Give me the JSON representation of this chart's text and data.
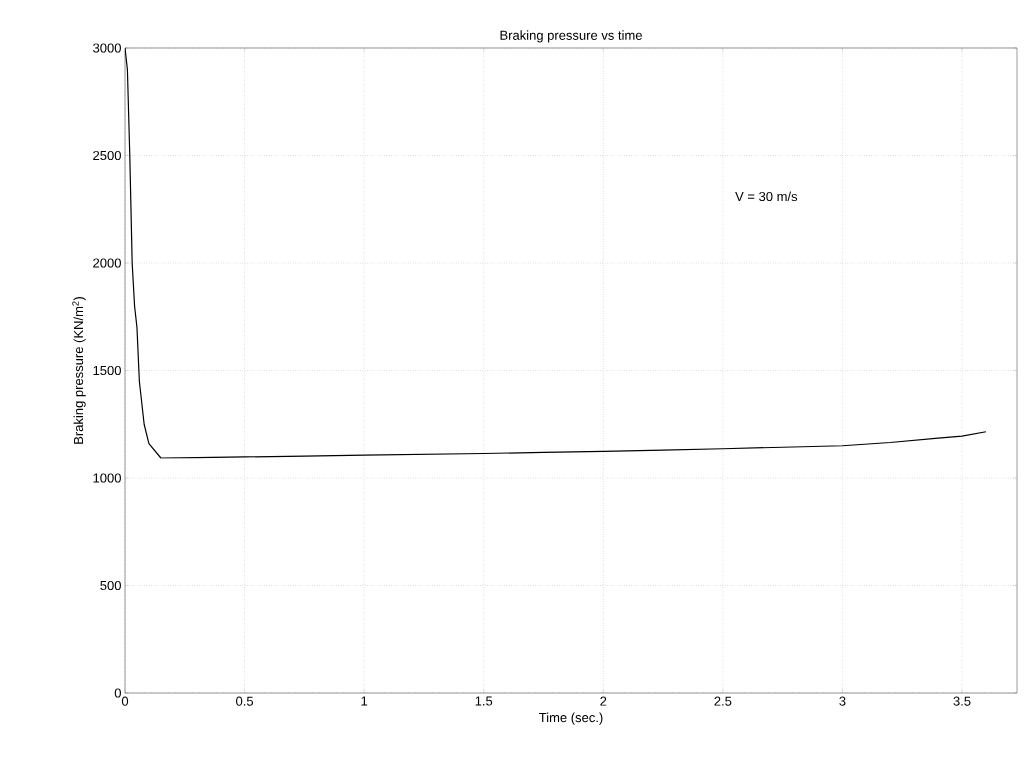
{
  "chart_data": {
    "type": "line",
    "title": "Braking pressure vs time",
    "xlabel": "Time  (sec.)",
    "ylabel": "Braking pressure  (KN/m$^{2}$)",
    "x": [
      0,
      0.01,
      0.02,
      0.03,
      0.04,
      0.05,
      0.06,
      0.08,
      0.1,
      0.15,
      0.3,
      0.5,
      0.75,
      1,
      1.25,
      1.5,
      1.75,
      2,
      2.25,
      2.5,
      2.75,
      3,
      3.2,
      3.4,
      3.5,
      3.6
    ],
    "values": [
      3000,
      2900,
      2500,
      2000,
      1800,
      1700,
      1450,
      1250,
      1160,
      1093,
      1095,
      1098,
      1102,
      1106,
      1110,
      1114,
      1119,
      1124,
      1130,
      1136,
      1143,
      1150,
      1165,
      1185,
      1195,
      1215
    ],
    "color": "#000000",
    "xlim": [
      0,
      3.73
    ],
    "ylim": [
      0,
      3000
    ],
    "xticks": [
      0,
      0.5,
      1,
      1.5,
      2,
      2.5,
      3,
      3.5
    ],
    "yticks": [
      0,
      500,
      1000,
      1500,
      2000,
      2500,
      3000
    ],
    "grid": true,
    "line_style": "solid",
    "annotations": [
      "V = 30 m/s"
    ]
  }
}
